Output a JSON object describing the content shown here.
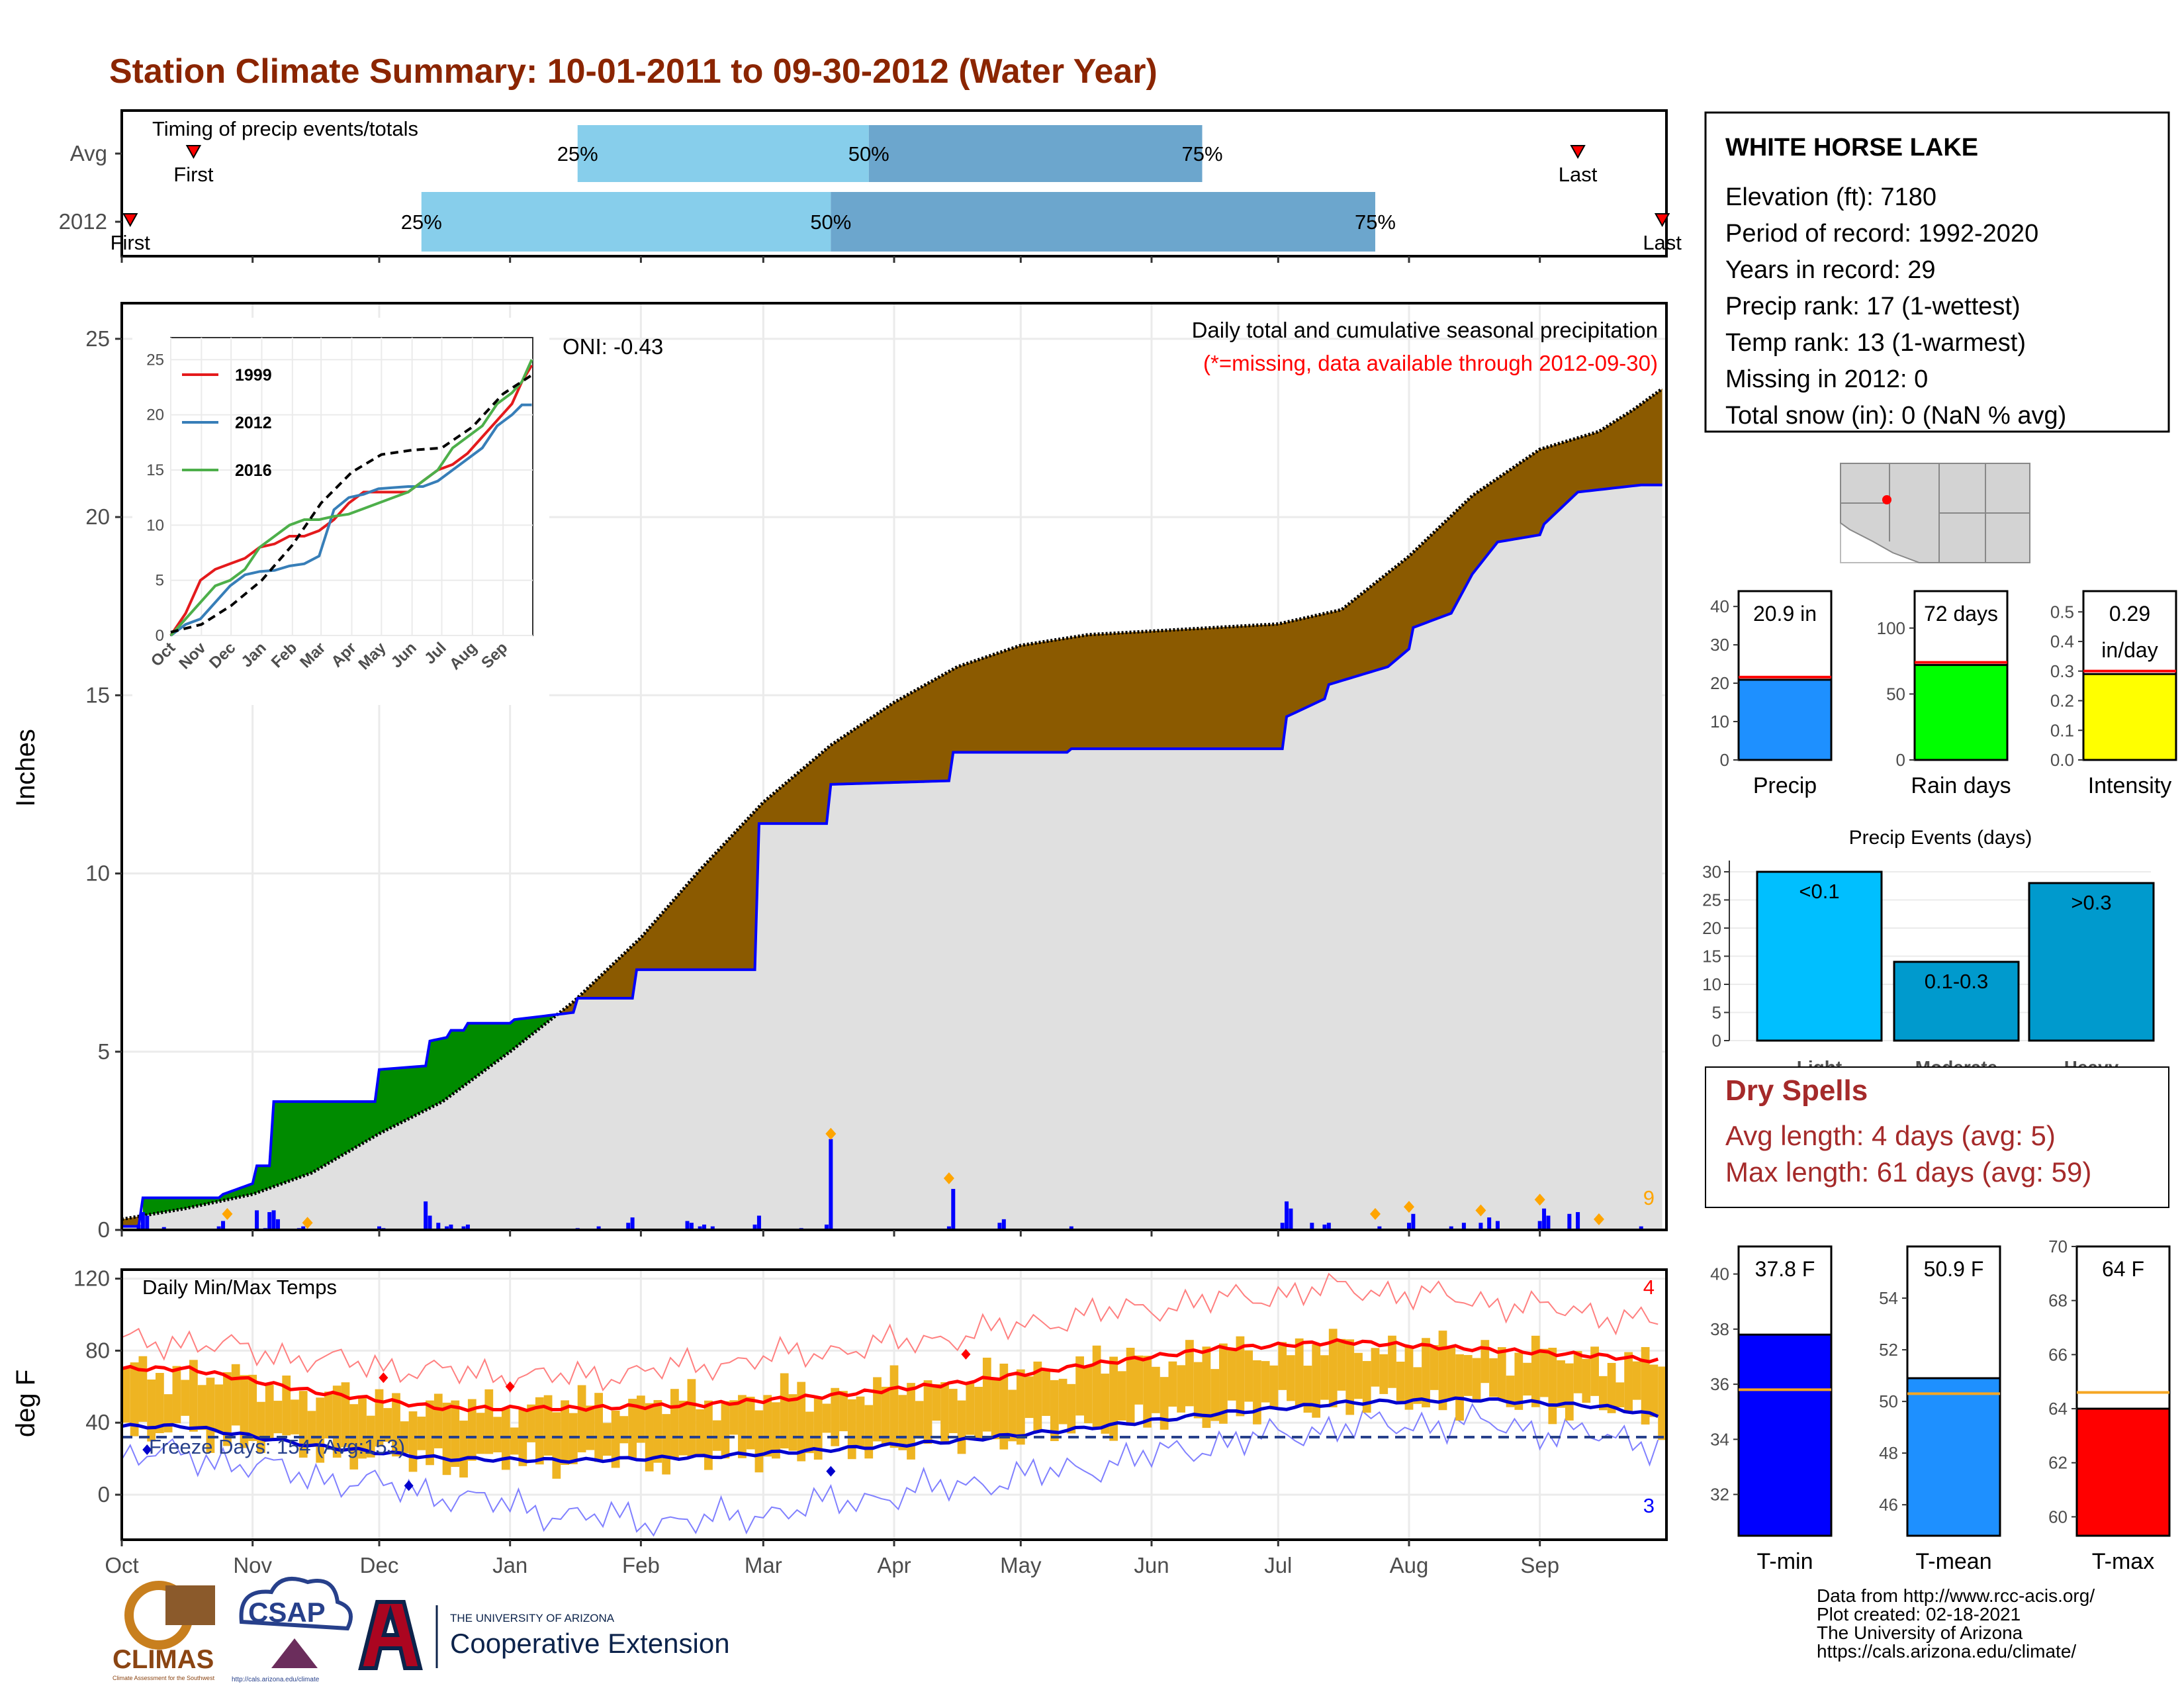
{
  "title": "Station Climate Summary: 10-01-2011 to 09-30-2012 (Water Year)",
  "colors": {
    "title": "#8B2500",
    "light_blue": "#87CEEB",
    "mid_blue": "#6CA6CD",
    "brown": "#8B5A00",
    "green": "#008B00",
    "grey_fill": "#E0E0E0",
    "blue": "#0000FF",
    "orange": "#FFA500",
    "temp_bar": "#EEB422",
    "red": "#FF0000",
    "dry_red": "#A52A2A"
  },
  "timing_panel": {
    "label": "Timing of precip events/totals",
    "rows": [
      {
        "name": "Avg",
        "first_label": "First",
        "last_label": "Last",
        "p25": "25%",
        "p50": "50%",
        "p75": "75%",
        "first_day": 17,
        "q25_day": 108,
        "q50_day": 177,
        "q75_day": 256,
        "last_day": 345
      },
      {
        "name": "2012",
        "first_label": "First",
        "last_label": "Last",
        "p25": "25%",
        "p50": "50%",
        "p75": "75%",
        "first_day": 2,
        "q25_day": 71,
        "q50_day": 168,
        "q75_day": 297,
        "last_day": 365
      }
    ]
  },
  "chart_data": [
    {
      "type": "area",
      "title": "Daily total and cumulative seasonal precipitation",
      "subtitle": "(*=missing, data available through 2012-09-30)",
      "ylabel": "Inches",
      "ylim": [
        0,
        26
      ],
      "yticks": [
        0,
        5,
        10,
        15,
        20,
        25
      ],
      "x_months": [
        "Oct",
        "Nov",
        "Dec",
        "Jan",
        "Feb",
        "Mar",
        "Apr",
        "May",
        "Jun",
        "Jul",
        "Aug",
        "Sep"
      ],
      "month_start_days": [
        0,
        31,
        61,
        92,
        123,
        152,
        183,
        213,
        244,
        274,
        305,
        336
      ],
      "oni_label": "ONI: -0.43",
      "corner_count": "9",
      "avg_cumulative": {
        "day": [
          0,
          15,
          31,
          45,
          61,
          76,
          92,
          107,
          123,
          137,
          152,
          168,
          183,
          198,
          213,
          229,
          244,
          259,
          274,
          289,
          305,
          320,
          336,
          350,
          358,
          365
        ],
        "inches": [
          0.3,
          0.6,
          1.0,
          1.6,
          2.7,
          3.6,
          5.0,
          6.4,
          8.2,
          10.1,
          12.0,
          13.6,
          14.8,
          15.8,
          16.4,
          16.7,
          16.8,
          16.9,
          17.0,
          17.4,
          18.9,
          20.6,
          21.9,
          22.4,
          23.0,
          23.6
        ]
      },
      "year_cumulative": {
        "day": [
          0,
          4,
          5,
          23,
          24,
          31,
          32,
          35,
          36,
          60,
          61,
          72,
          73,
          77,
          78,
          81,
          82,
          92,
          93,
          107,
          108,
          121,
          122,
          150,
          151,
          167,
          168,
          196,
          197,
          224,
          225,
          275,
          276,
          285,
          286,
          300,
          305,
          306,
          315,
          320,
          326,
          336,
          337,
          345,
          360,
          365
        ],
        "inches": [
          0.1,
          0.1,
          0.9,
          0.9,
          1.0,
          1.3,
          1.8,
          1.8,
          3.6,
          3.6,
          4.5,
          4.6,
          5.3,
          5.4,
          5.6,
          5.6,
          5.8,
          5.8,
          5.9,
          6.1,
          6.5,
          6.5,
          7.3,
          7.3,
          11.4,
          11.4,
          12.5,
          12.6,
          13.4,
          13.4,
          13.5,
          13.5,
          14.4,
          14.9,
          15.3,
          15.8,
          16.3,
          16.9,
          17.3,
          18.4,
          19.3,
          19.5,
          19.8,
          20.7,
          20.9,
          20.9
        ]
      },
      "daily_bars": {
        "day": [
          4,
          5,
          6,
          10,
          23,
          24,
          32,
          34,
          35,
          36,
          37,
          42,
          43,
          61,
          62,
          72,
          73,
          75,
          77,
          78,
          81,
          82,
          108,
          113,
          120,
          121,
          134,
          135,
          137,
          138,
          140,
          150,
          151,
          161,
          167,
          168,
          196,
          197,
          208,
          209,
          225,
          275,
          276,
          277,
          282,
          285,
          286,
          298,
          305,
          306,
          315,
          318,
          322,
          324,
          326,
          336,
          337,
          338,
          343,
          345,
          360
        ],
        "inches": [
          0.15,
          0.5,
          0.4,
          0.08,
          0.1,
          0.25,
          0.55,
          0.05,
          0.5,
          0.55,
          0.3,
          0.05,
          0.1,
          0.1,
          0.05,
          0.8,
          0.4,
          0.2,
          0.1,
          0.15,
          0.1,
          0.15,
          0.05,
          0.1,
          0.2,
          0.35,
          0.25,
          0.2,
          0.1,
          0.15,
          0.1,
          0.15,
          0.4,
          0.05,
          0.15,
          2.55,
          0.1,
          1.15,
          0.2,
          0.3,
          0.1,
          0.2,
          0.8,
          0.6,
          0.2,
          0.15,
          0.2,
          0.1,
          0.2,
          0.45,
          0.1,
          0.2,
          0.2,
          0.35,
          0.25,
          0.25,
          0.6,
          0.4,
          0.45,
          0.5,
          0.1
        ],
        "extreme_day": [
          25,
          44,
          168,
          196,
          297,
          305,
          322,
          336,
          350
        ],
        "extreme_value": [
          0.3,
          0.05,
          2.55,
          1.3,
          0.3,
          0.5,
          0.4,
          0.7,
          0.15
        ]
      }
    },
    {
      "type": "line",
      "ylim": [
        0,
        27
      ],
      "xticks": [
        "Oct",
        "Nov",
        "Dec",
        "Jan",
        "Feb",
        "Mar",
        "Apr",
        "May",
        "Jun",
        "Jul",
        "Aug",
        "Sep"
      ],
      "yticks": [
        0,
        5,
        10,
        15,
        20,
        25
      ],
      "series": [
        {
          "name": "1999",
          "color": "#E41A1C",
          "x": [
            0,
            15,
            30,
            45,
            60,
            75,
            90,
            105,
            120,
            135,
            150,
            165,
            180,
            195,
            210,
            225,
            240,
            255,
            270,
            285,
            300,
            315,
            330,
            345,
            355,
            365
          ],
          "y": [
            0,
            2,
            5,
            6,
            6.5,
            7,
            8,
            8.3,
            9,
            9,
            9.5,
            10.5,
            12,
            13,
            13,
            13,
            13,
            14,
            15,
            15.5,
            16.5,
            18,
            19.5,
            21,
            23,
            24.5
          ]
        },
        {
          "name": "2012",
          "color": "#377EB8",
          "x": [
            0,
            15,
            30,
            45,
            60,
            75,
            90,
            105,
            120,
            135,
            150,
            165,
            180,
            195,
            210,
            225,
            240,
            255,
            270,
            285,
            300,
            315,
            330,
            345,
            355,
            365
          ],
          "y": [
            0,
            1,
            1.5,
            3,
            4.5,
            5.5,
            5.8,
            5.9,
            6.3,
            6.5,
            7.2,
            11.4,
            12.5,
            12.8,
            13.3,
            13.4,
            13.5,
            13.5,
            14,
            15,
            16,
            17,
            19,
            20,
            20.9,
            20.9
          ]
        },
        {
          "name": "2016",
          "color": "#4DAF4A",
          "x": [
            0,
            15,
            30,
            45,
            60,
            75,
            90,
            105,
            120,
            135,
            150,
            165,
            180,
            195,
            210,
            225,
            240,
            255,
            270,
            285,
            300,
            315,
            330,
            345,
            355,
            365
          ],
          "y": [
            0,
            1.5,
            3,
            4.5,
            5,
            6,
            8,
            9,
            10,
            10.5,
            10.5,
            10.8,
            11,
            11.5,
            12,
            12.5,
            13,
            14,
            15,
            17,
            18,
            19,
            21,
            22,
            23,
            25
          ]
        },
        {
          "name": "avg",
          "color": "#000000",
          "dashed": true,
          "x": [
            0,
            31,
            61,
            92,
            123,
            152,
            183,
            213,
            244,
            274,
            305,
            336,
            365
          ],
          "y": [
            0.3,
            1.0,
            2.7,
            5.0,
            8.2,
            12.0,
            14.8,
            16.4,
            16.8,
            17.0,
            18.9,
            21.9,
            23.6
          ]
        }
      ]
    },
    {
      "type": "bar",
      "panel": "Daily Min/Max Temps",
      "ylabel": "deg F",
      "ylim": [
        -25,
        125
      ],
      "yticks": [
        0,
        40,
        80,
        120
      ],
      "x_months": [
        "Oct",
        "Nov",
        "Dec",
        "Jan",
        "Feb",
        "Mar",
        "Apr",
        "May",
        "Jun",
        "Jul",
        "Aug",
        "Sep"
      ],
      "freeze_label": "Freeze Days: 154 (Avg:153)",
      "freeze_line": 32,
      "hot_count": "4",
      "cold_count": "3",
      "monthly_avg_max": [
        70,
        57,
        48,
        48,
        50,
        55,
        62,
        72,
        81,
        85,
        81,
        77,
        74
      ],
      "monthly_avg_min": [
        38,
        27,
        20,
        19,
        21,
        25,
        30,
        37,
        45,
        51,
        53,
        49,
        43
      ],
      "monthly_obs_max": [
        68,
        55,
        48,
        50,
        52,
        56,
        62,
        72,
        78,
        82,
        80,
        75,
        72
      ],
      "monthly_obs_min": [
        35,
        25,
        18,
        20,
        20,
        25,
        30,
        38,
        45,
        52,
        52,
        48,
        42
      ],
      "monthly_rec_max": [
        85,
        75,
        68,
        65,
        72,
        80,
        88,
        100,
        108,
        115,
        108,
        100,
        95
      ],
      "monthly_rec_min": [
        22,
        10,
        0,
        -12,
        -15,
        -5,
        5,
        15,
        28,
        38,
        40,
        32,
        28
      ],
      "record_high_days": [
        62,
        92,
        200
      ],
      "record_high_vals": [
        65,
        60,
        78
      ],
      "record_low_days": [
        6,
        68,
        168
      ],
      "record_low_vals": [
        25,
        5,
        13
      ]
    },
    {
      "type": "bar",
      "group": "precip_summary",
      "categories": [
        "Precip",
        "Rain days",
        "Intensity"
      ],
      "values": [
        20.9,
        72,
        0.29
      ],
      "averages": [
        21.6,
        74,
        0.3
      ],
      "labels": [
        "20.9 in",
        "72 days",
        "0.29\nin/day"
      ],
      "ylims": [
        [
          0,
          44
        ],
        [
          0,
          128
        ],
        [
          0,
          0.57
        ]
      ],
      "yticks": [
        [
          0,
          10,
          20,
          30,
          40
        ],
        [
          0,
          50,
          100
        ],
        [
          0.0,
          0.1,
          0.2,
          0.3,
          0.4,
          0.5
        ]
      ]
    },
    {
      "type": "bar",
      "title": "Precip Events (days)",
      "categories": [
        "Light",
        "Moderate",
        "Heavy"
      ],
      "values": [
        30,
        14,
        28
      ],
      "labels": [
        "<0.1",
        "0.1-0.3",
        ">0.3"
      ],
      "ylim": [
        0,
        32
      ],
      "yticks": [
        0,
        5,
        10,
        15,
        20,
        25,
        30
      ]
    },
    {
      "type": "bar",
      "group": "temperature_summary",
      "categories": [
        "T-min",
        "T-mean",
        "T-max"
      ],
      "values": [
        37.8,
        50.9,
        64
      ],
      "averages": [
        35.8,
        50.3,
        64.6
      ],
      "labels": [
        "37.8 F",
        "50.9 F",
        "64 F"
      ],
      "ylims": [
        [
          30.5,
          41
        ],
        [
          44.8,
          56
        ],
        [
          59.3,
          70
        ]
      ],
      "yticks": [
        [
          32,
          34,
          36,
          38,
          40
        ],
        [
          46,
          48,
          50,
          52,
          54
        ],
        [
          60,
          62,
          64,
          66,
          68,
          70
        ]
      ]
    }
  ],
  "station": {
    "name": "WHITE HORSE LAKE",
    "lines": [
      "Elevation (ft): 7180",
      "Period of record: 1992-2020",
      "Years in record: 29",
      "Precip rank: 17 (1-wettest)",
      "Temp rank: 13 (1-warmest)",
      "Missing in 2012: 0",
      "Total snow (in): 0 (NaN % avg)"
    ]
  },
  "dry_spells": {
    "title": "Dry Spells",
    "avg": "Avg length: 4 days (avg: 5)",
    "max": "Max length: 61 days (avg: 59)"
  },
  "footer": {
    "lines": [
      "Data from http://www.rcc-acis.org/",
      "Plot created: 02-18-2021",
      "The University of Arizona",
      "https://cals.arizona.edu/climate/"
    ],
    "logos": {
      "climas": "CLIMAS",
      "climas_sub": "Climate Assessment for the Southwest",
      "csap": "CSAP",
      "csap_url": "http://cals.arizona.edu/climate",
      "ua_small": "THE UNIVERSITY OF ARIZONA",
      "ua_big": "Cooperative Extension"
    }
  }
}
